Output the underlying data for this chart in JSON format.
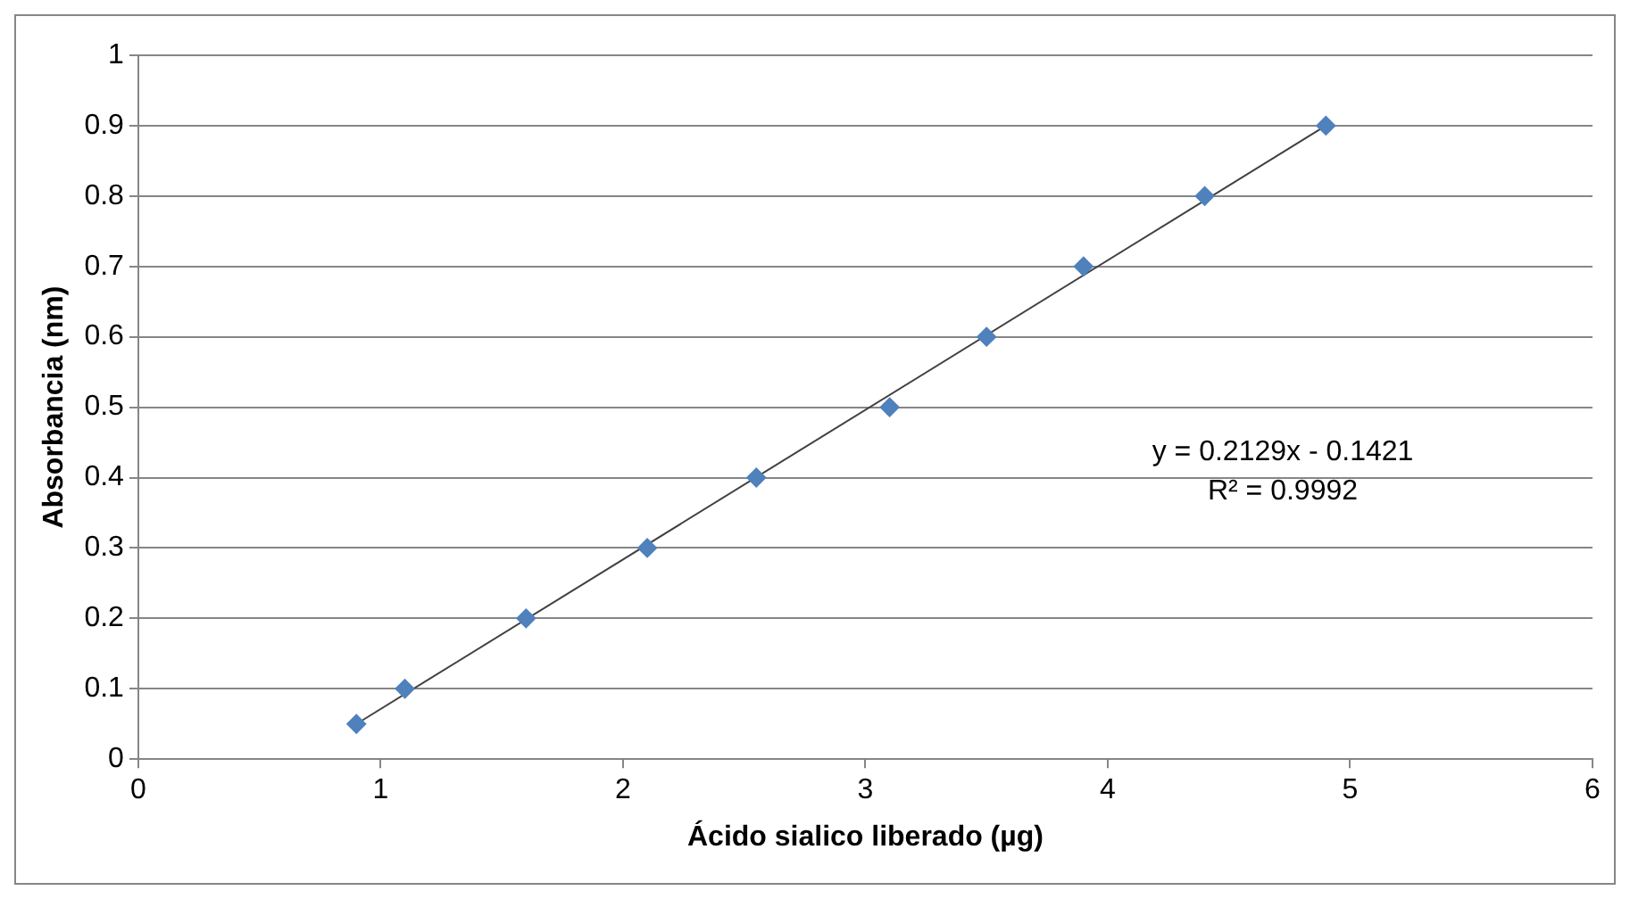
{
  "chart_data": {
    "type": "scatter",
    "xlabel": "Ácido sialico liberado (µg)",
    "ylabel": "Absorbancia (nm)",
    "xlim": [
      0,
      6
    ],
    "xticks": [
      0,
      1,
      2,
      3,
      4,
      5,
      6
    ],
    "ylim": [
      0,
      1
    ],
    "yticks": [
      0,
      0.1,
      0.2,
      0.3,
      0.4,
      0.5,
      0.6,
      0.7,
      0.8,
      0.9,
      1
    ],
    "grid": "y",
    "legend": false,
    "series": [
      {
        "type": "scatter",
        "color": "#4f81bd",
        "marker": "diamond",
        "x": [
          0.9,
          1.1,
          1.6,
          2.1,
          2.55,
          3.1,
          3.5,
          3.9,
          4.4,
          4.9
        ],
        "values": [
          0.05,
          0.1,
          0.2,
          0.3,
          0.4,
          0.5,
          0.6,
          0.7,
          0.8,
          0.9
        ]
      },
      {
        "type": "line",
        "color": "#404040",
        "marker": "none",
        "line_style": "solid",
        "x": [
          0.9,
          4.9
        ],
        "values": [
          0.05,
          0.9
        ]
      }
    ],
    "annotations": [
      "y = 0.2129x - 0.1421",
      "R² = 0.9992"
    ]
  }
}
